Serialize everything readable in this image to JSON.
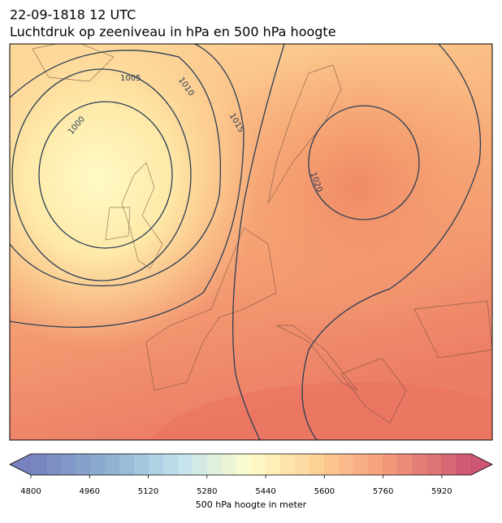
{
  "header": {
    "title": "22-09-1818 12 UTC",
    "subtitle": "Luchtdruk op zeeniveau in hPa en 500 hPa hoogte"
  },
  "map": {
    "isobar_labels": [
      1005,
      1010,
      1000,
      1015,
      1020
    ]
  },
  "colorbar": {
    "lim": [
      4800,
      6000
    ],
    "ticks": [
      4800,
      4960,
      5120,
      5280,
      5440,
      5600,
      5760,
      5920
    ],
    "label": "500 hPa hoogte in meter"
  }
}
